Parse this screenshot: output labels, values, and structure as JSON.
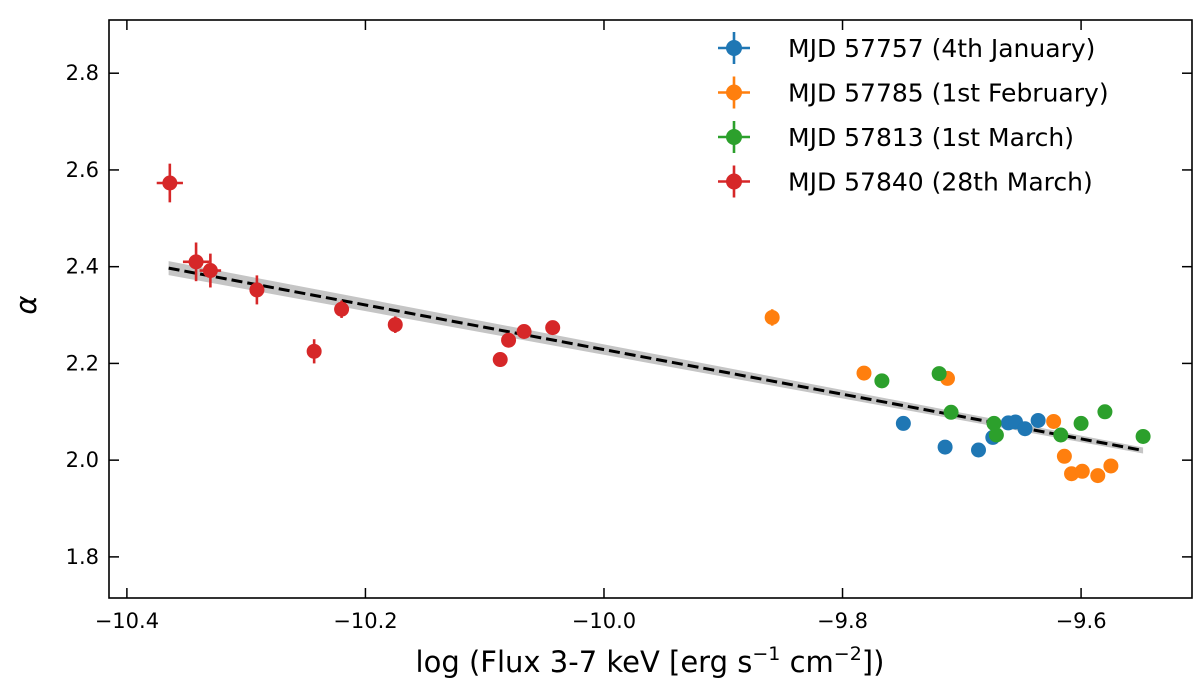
{
  "chart_data": {
    "type": "scatter",
    "xlabel": "log (Flux 3-7 keV [erg s",
    "xlabel_sup1": "−1",
    "xlabel_mid": " cm",
    "xlabel_sup2": "−2",
    "xlabel_end": "])",
    "ylabel": "α",
    "xlim": [
      -10.415,
      -9.507
    ],
    "ylim": [
      1.715,
      2.91
    ],
    "xticks": [
      -10.4,
      -10.2,
      -10.0,
      -9.8,
      -9.6
    ],
    "xtick_labels": [
      "−10.4",
      "−10.2",
      "−10.0",
      "−9.8",
      "−9.6"
    ],
    "yticks": [
      1.8,
      2.0,
      2.2,
      2.4,
      2.6,
      2.8
    ],
    "ytick_labels": [
      "1.8",
      "2.0",
      "2.2",
      "2.4",
      "2.6",
      "2.8"
    ],
    "legend_position": "top-right",
    "fit_line": {
      "x": [
        -10.365,
        -9.548
      ],
      "y": [
        2.397,
        2.02
      ],
      "style": "dashed",
      "band_color": "#bbbbbb",
      "color": "#000000"
    },
    "series": [
      {
        "name": "MJD 57757 (4th January)",
        "color": "#1f77b4",
        "points": [
          {
            "x": -9.749,
            "y": 2.076
          },
          {
            "x": -9.714,
            "y": 2.027
          },
          {
            "x": -9.686,
            "y": 2.021
          },
          {
            "x": -9.674,
            "y": 2.047
          },
          {
            "x": -9.661,
            "y": 2.077
          },
          {
            "x": -9.655,
            "y": 2.079
          },
          {
            "x": -9.647,
            "y": 2.065
          },
          {
            "x": -9.636,
            "y": 2.082
          }
        ]
      },
      {
        "name": "MJD 57785 (1st February)",
        "color": "#ff7f0e",
        "points": [
          {
            "x": -9.859,
            "y": 2.295,
            "yerr": 0.017
          },
          {
            "x": -9.782,
            "y": 2.18
          },
          {
            "x": -9.712,
            "y": 2.169
          },
          {
            "x": -9.623,
            "y": 2.08
          },
          {
            "x": -9.614,
            "y": 2.008
          },
          {
            "x": -9.608,
            "y": 1.972
          },
          {
            "x": -9.599,
            "y": 1.977
          },
          {
            "x": -9.586,
            "y": 1.968
          },
          {
            "x": -9.575,
            "y": 1.988
          }
        ]
      },
      {
        "name": "MJD 57813 (1st March)",
        "color": "#2ca02c",
        "points": [
          {
            "x": -9.767,
            "y": 2.164
          },
          {
            "x": -9.719,
            "y": 2.179
          },
          {
            "x": -9.709,
            "y": 2.099
          },
          {
            "x": -9.673,
            "y": 2.076
          },
          {
            "x": -9.671,
            "y": 2.052
          },
          {
            "x": -9.617,
            "y": 2.052
          },
          {
            "x": -9.6,
            "y": 2.076
          },
          {
            "x": -9.58,
            "y": 2.1
          },
          {
            "x": -9.548,
            "y": 2.049
          }
        ]
      },
      {
        "name": "MJD 57840 (28th March)",
        "color": "#d62728",
        "points": [
          {
            "x": -10.364,
            "y": 2.573,
            "xerr": 0.011,
            "yerr": 0.04
          },
          {
            "x": -10.342,
            "y": 2.41,
            "xerr": 0.011,
            "yerr": 0.04
          },
          {
            "x": -10.33,
            "y": 2.392,
            "xerr": 0.009,
            "yerr": 0.035
          },
          {
            "x": -10.291,
            "y": 2.352,
            "xerr": 0.006,
            "yerr": 0.03
          },
          {
            "x": -10.243,
            "y": 2.225,
            "yerr": 0.025
          },
          {
            "x": -10.22,
            "y": 2.312,
            "yerr": 0.018
          },
          {
            "x": -10.175,
            "y": 2.28,
            "yerr": 0.017
          },
          {
            "x": -10.087,
            "y": 2.208,
            "yerr": 0.015
          },
          {
            "x": -10.08,
            "y": 2.248,
            "yerr": 0.013
          },
          {
            "x": -10.067,
            "y": 2.266,
            "yerr": 0.01
          },
          {
            "x": -10.043,
            "y": 2.274,
            "yerr": 0.01
          }
        ]
      }
    ]
  }
}
